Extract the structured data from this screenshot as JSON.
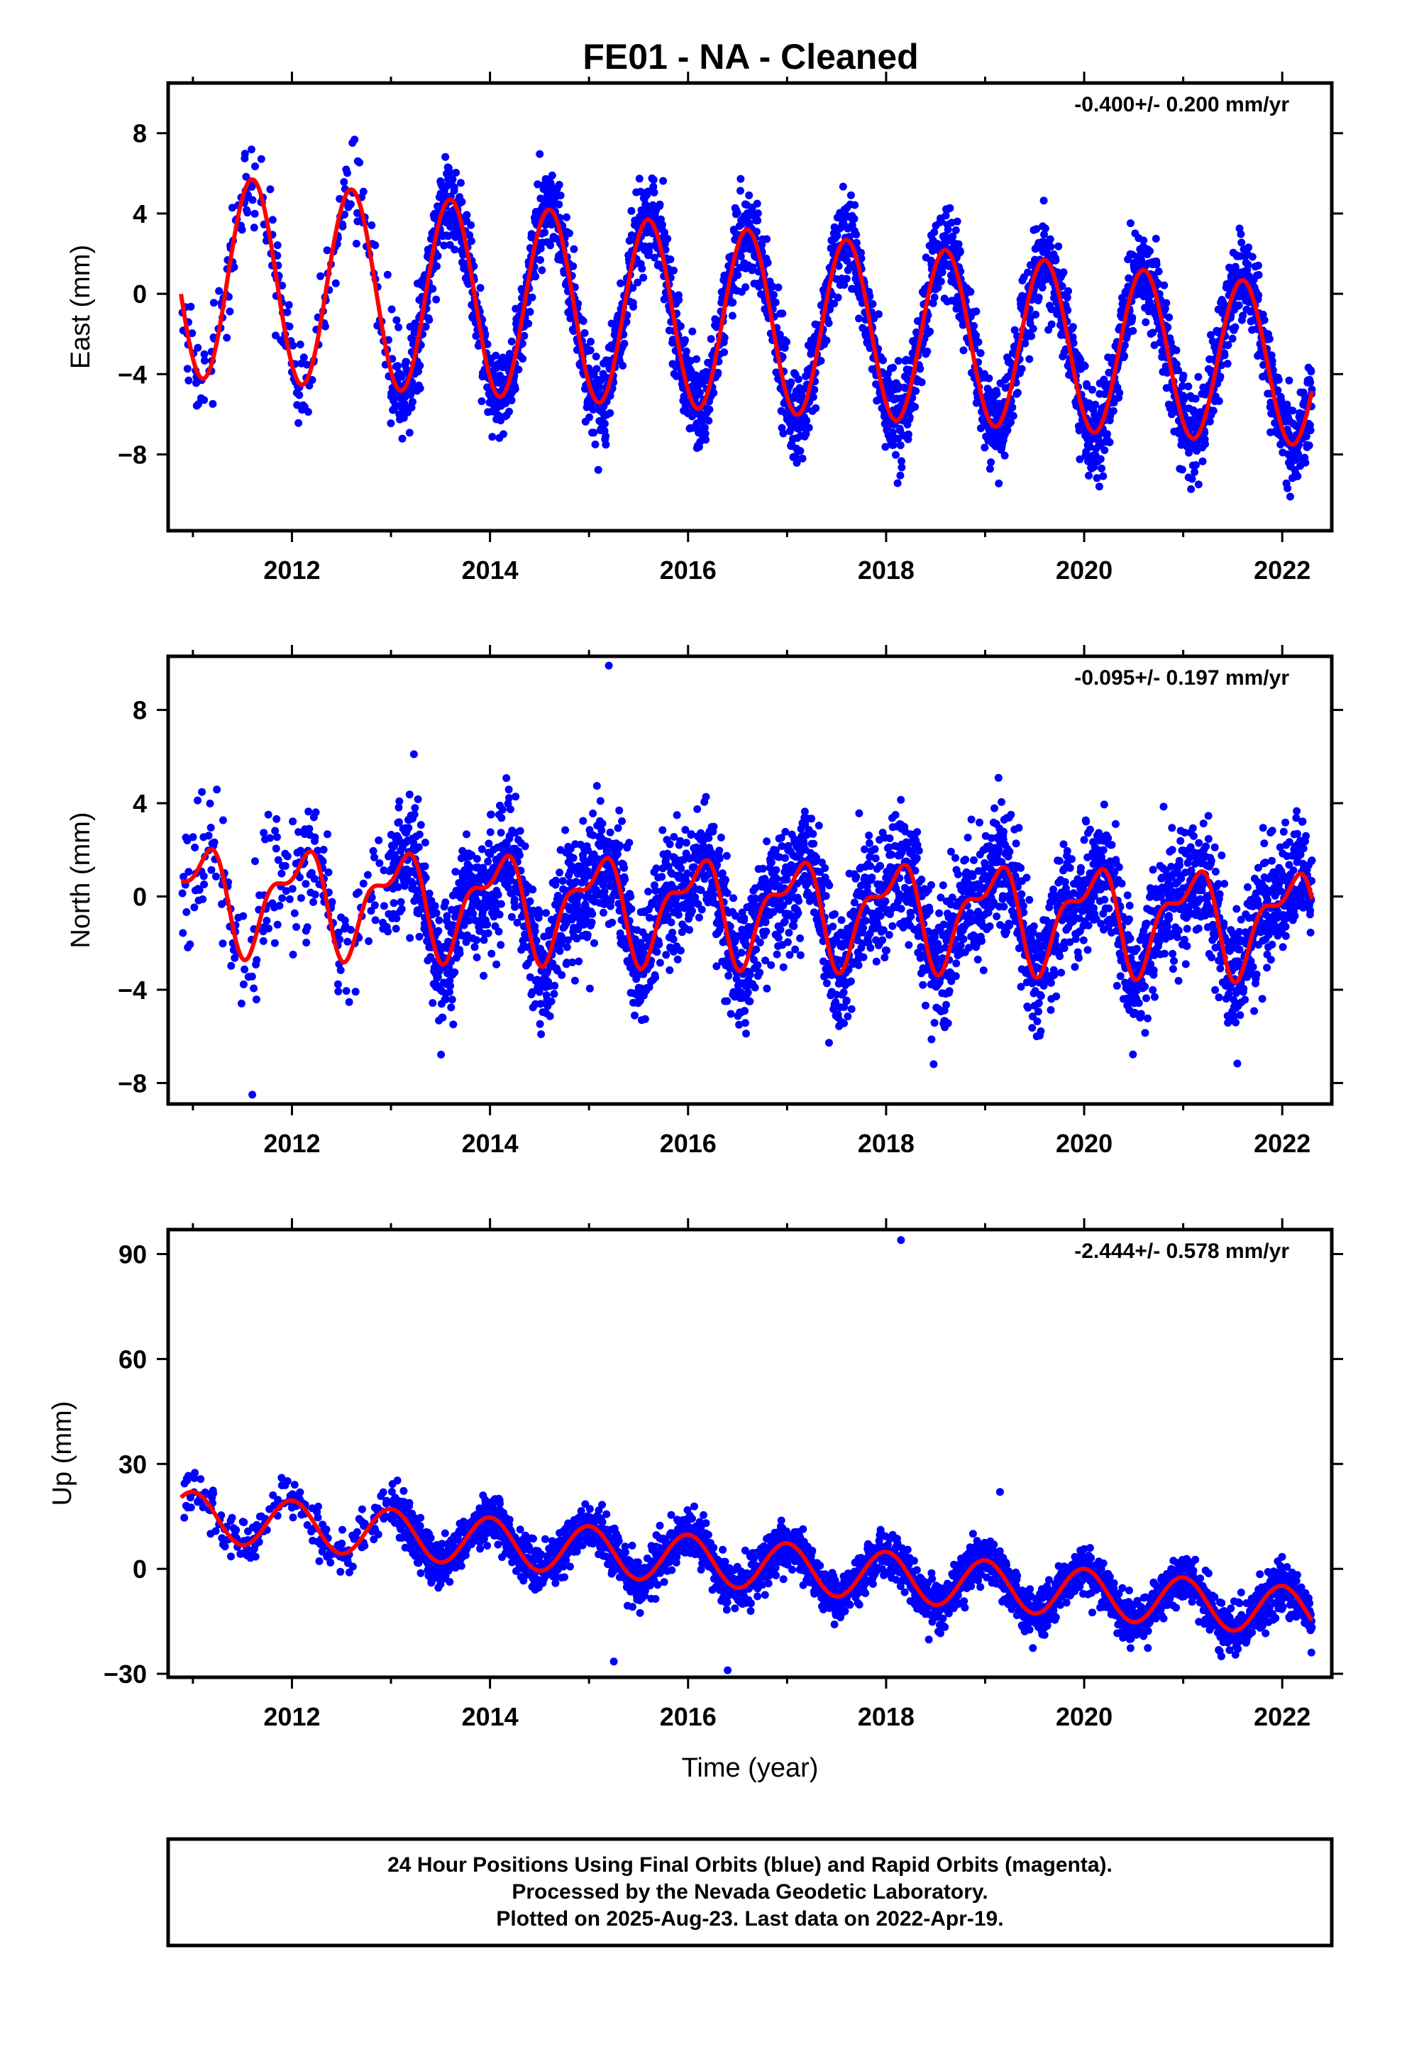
{
  "chart_data": {
    "type": "scatter",
    "title": "FE01  - NA - Cleaned",
    "xlabel": "Time (year)",
    "xlim": [
      2010.75,
      2022.5
    ],
    "x_ticks": [
      "2012",
      "2014",
      "2016",
      "2018",
      "2020",
      "2022"
    ],
    "marker_color": "#0000ff",
    "fit_color": "#ff0000",
    "panels": [
      {
        "name": "east",
        "ylabel": "East (mm)",
        "ylim": [
          -11.8,
          10.5
        ],
        "y_ticks": [
          {
            "v": 8,
            "t": "8"
          },
          {
            "v": 4,
            "t": "4"
          },
          {
            "v": 0,
            "t": "0"
          },
          {
            "v": -4,
            "t": "−4"
          },
          {
            "v": -8,
            "t": "−8"
          }
        ],
        "rate_text": "-0.400+/- 0.200 mm/yr",
        "model": {
          "offset": 0.9,
          "trend": -0.4,
          "amp": 5.1,
          "amp_growth": -0.02,
          "peak_phase": 0.6,
          "noise": 1.1,
          "seed": 11
        },
        "outliers": []
      },
      {
        "name": "north",
        "ylabel": "North (mm)",
        "ylim": [
          -8.9,
          10.3
        ],
        "y_ticks": [
          {
            "v": 8,
            "t": "8"
          },
          {
            "v": 4,
            "t": "4"
          },
          {
            "v": 0,
            "t": "0"
          },
          {
            "v": -4,
            "t": "−4"
          },
          {
            "v": -8,
            "t": "−8"
          }
        ],
        "rate_text": "-0.095+/- 0.197 mm/yr",
        "model": {
          "offset": 0.0,
          "trend": -0.095,
          "amp": 1.9,
          "amp_growth": 0.0,
          "peak_phase": 0.07,
          "noise": 1.3,
          "seed": 23
        },
        "outliers": [
          {
            "x": 2015.2,
            "y": 9.9
          },
          {
            "x": 2011.6,
            "y": -8.5
          }
        ]
      },
      {
        "name": "up",
        "ylabel": "Up (mm)",
        "ylim": [
          -31,
          97
        ],
        "y_ticks": [
          {
            "v": 90,
            "t": "90"
          },
          {
            "v": 60,
            "t": "60"
          },
          {
            "v": 30,
            "t": "30"
          },
          {
            "v": 0,
            "t": "0"
          },
          {
            "v": -30,
            "t": "−30"
          }
        ],
        "rate_text": "-2.444+/- 0.578 mm/yr",
        "model": {
          "offset": 15.0,
          "trend": -2.444,
          "amp": 7.0,
          "amp_growth": 0.0,
          "peak_phase": 0.0,
          "noise": 3.2,
          "seed": 37
        },
        "outliers": [
          {
            "x": 2018.15,
            "y": 94
          },
          {
            "x": 2015.25,
            "y": -26.5
          },
          {
            "x": 2016.4,
            "y": -29
          },
          {
            "x": 2019.15,
            "y": 22
          }
        ]
      }
    ]
  },
  "footer": {
    "line1": "24 Hour Positions Using Final Orbits (blue) and Rapid Orbits (magenta).",
    "line2": "Processed by the Nevada Geodetic Laboratory.",
    "line3": "Plotted on 2025-Aug-23. Last data on 2022-Apr-19."
  }
}
